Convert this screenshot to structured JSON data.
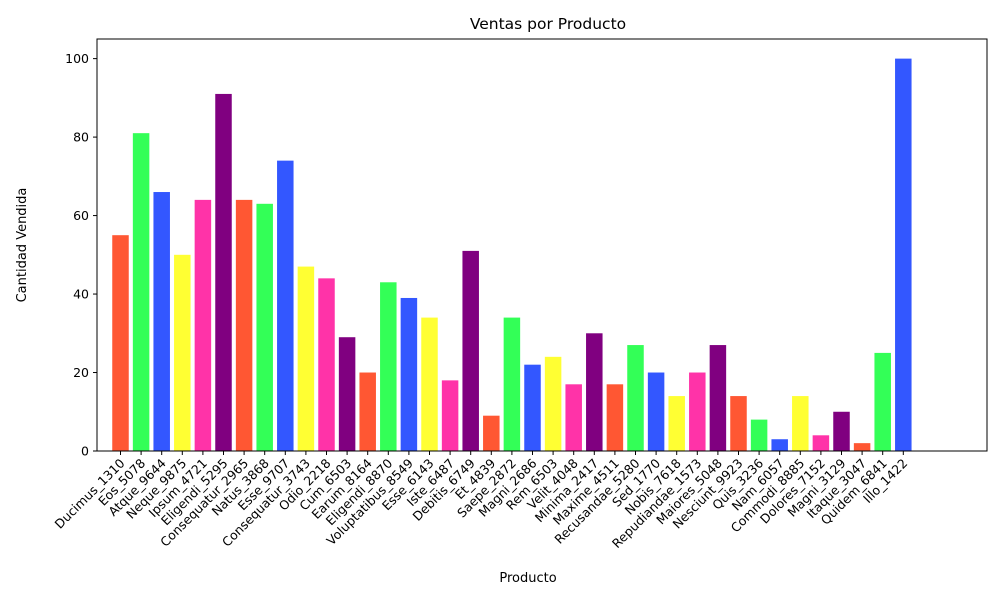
{
  "chart_data": {
    "type": "bar",
    "title": "Ventas por Producto",
    "xlabel": "Producto",
    "ylabel": "Cantidad Vendida",
    "ylim": [
      0,
      105
    ],
    "yticks": [
      0,
      20,
      40,
      60,
      80,
      100
    ],
    "grid": false,
    "legend": "none",
    "palette": [
      "#FF5733",
      "#33FF57",
      "#3357FF",
      "#FFFF33",
      "#FF33A8",
      "#800080"
    ],
    "categories": [
      "Ducimus_1310",
      "Eos_5078",
      "Atque_9644",
      "Neque_9875",
      "Ipsum_4721",
      "Eligendi_5295",
      "Consequatur_2965",
      "Natus_3868",
      "Esse_9707",
      "Consequatur_3743",
      "Odio_2218",
      "Cum_6503",
      "Earum_8164",
      "Eligendi_8870",
      "Voluptatibus_8549",
      "Esse_6143",
      "Iste_6487",
      "Debitis_6749",
      "Et_4839",
      "Saepe_2872",
      "Magni_2686",
      "Rem_6503",
      "Velit_4048",
      "Minima_2417",
      "Maxime_4511",
      "Recusandae_5280",
      "Sed_1770",
      "Nobis_7618",
      "Repudiandae_1573",
      "Maiores_5048",
      "Nesciunt_9923",
      "Quis_3236",
      "Nam_6057",
      "Commodi_8885",
      "Dolores_7152",
      "Magni_3129",
      "Itaque_3047",
      "Quidem_6841",
      "Illo_1422"
    ],
    "values": [
      55,
      81,
      66,
      50,
      64,
      91,
      64,
      63,
      74,
      47,
      44,
      29,
      20,
      43,
      39,
      34,
      18,
      51,
      9,
      34,
      22,
      24,
      17,
      30,
      17,
      27,
      20,
      14,
      20,
      27,
      14,
      8,
      3,
      14,
      4,
      10,
      2,
      25,
      100
    ]
  }
}
